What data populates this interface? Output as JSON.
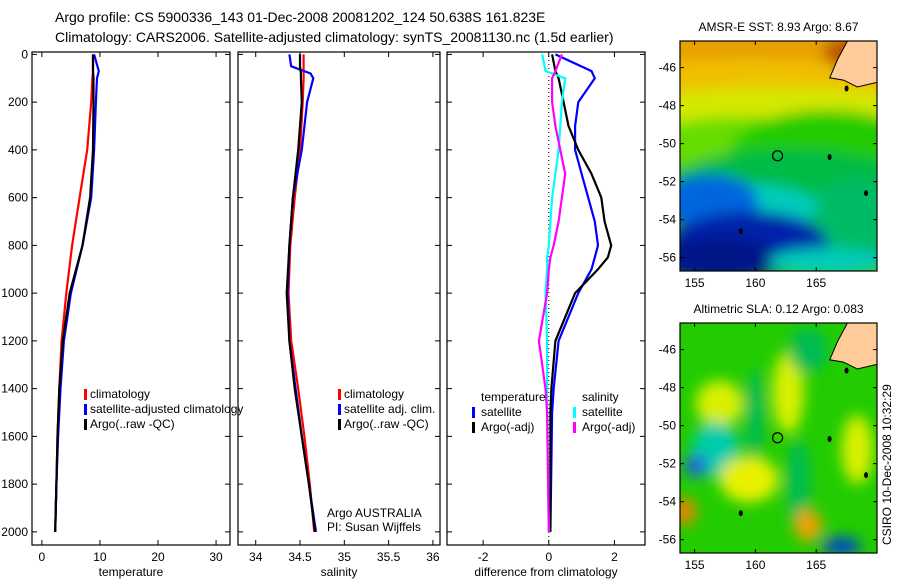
{
  "title": {
    "line1": "Argo profile: CS 5900336_143 01-Dec-2008 20081202_124 50.638S 161.823E",
    "line2": "Climatology: CARS2006. Satellite-adjusted climatology: synTS_20081130.nc (1.5d earlier)"
  },
  "credit": {
    "org": "Argo AUSTRALIA",
    "pi": "PI: Susan Wijffels",
    "stamp": "CSIRO 10-Dec-2008 10:32:29"
  },
  "colors": {
    "red": "#ff0000",
    "blue": "#0000ff",
    "black": "#000000",
    "cyan": "#00ffff",
    "magenta": "#ff00ff"
  },
  "chart_data": [
    {
      "type": "line",
      "name": "temperature",
      "xlabel": "temperature",
      "xlim": [
        -1.7,
        32.4
      ],
      "xticks": [
        0,
        10,
        20,
        30
      ],
      "ylim": [
        2055,
        -10
      ],
      "yticks": [
        0,
        200,
        400,
        600,
        800,
        1000,
        1200,
        1400,
        1600,
        1800,
        2000
      ],
      "legend": [
        "climatology",
        "satellite-adjusted climatology",
        "Argo(..raw -QC)"
      ],
      "depth": [
        0,
        70,
        100,
        200,
        400,
        600,
        800,
        1000,
        1200,
        1400,
        1600,
        1800,
        2000
      ],
      "series": [
        {
          "name": "climatology",
          "color": "red",
          "values": [
            8.8,
            8.8,
            8.7,
            8.5,
            7.8,
            6.5,
            5.2,
            4.2,
            3.4,
            3.0,
            2.7,
            2.5,
            2.3
          ]
        },
        {
          "name": "satellite-adjusted climatology",
          "color": "blue",
          "values": [
            9.0,
            9.8,
            9.5,
            9.3,
            9.0,
            8.5,
            7.0,
            5.0,
            3.8,
            3.2,
            2.8,
            2.5,
            2.3
          ]
        },
        {
          "name": "Argo(..raw -QC)",
          "color": "black",
          "values": [
            8.8,
            8.8,
            8.9,
            8.9,
            8.8,
            8.3,
            7.0,
            4.8,
            3.6,
            3.0,
            2.7,
            2.5,
            2.3
          ]
        }
      ]
    },
    {
      "type": "line",
      "name": "salinity",
      "xlabel": "salinity",
      "xlim": [
        33.8,
        36.08
      ],
      "xticks": [
        34,
        34.5,
        35,
        35.5,
        36
      ],
      "ylim": [
        2055,
        -10
      ],
      "legend": [
        "climatology",
        "satellite adj. clim.",
        "Argo(..raw -QC)"
      ],
      "depth": [
        0,
        50,
        80,
        100,
        200,
        400,
        600,
        800,
        1000,
        1200,
        1400,
        1600,
        1800,
        2000
      ],
      "series": [
        {
          "name": "climatology",
          "color": "red",
          "values": [
            34.54,
            34.54,
            34.54,
            34.54,
            34.53,
            34.5,
            34.44,
            34.39,
            34.37,
            34.4,
            34.48,
            34.55,
            34.61,
            34.66
          ]
        },
        {
          "name": "satellite adj. clim.",
          "color": "blue",
          "values": [
            34.38,
            34.4,
            34.62,
            34.65,
            34.58,
            34.52,
            34.42,
            34.38,
            34.36,
            34.38,
            34.45,
            34.52,
            34.6,
            34.68
          ]
        },
        {
          "name": "Argo(..raw -QC)",
          "color": "black",
          "values": [
            34.5,
            34.5,
            34.51,
            34.51,
            34.52,
            34.48,
            34.42,
            34.38,
            34.35,
            34.38,
            34.44,
            34.52,
            34.6,
            34.67
          ]
        }
      ]
    },
    {
      "type": "line",
      "name": "difference",
      "xlabel": "difference from climatology",
      "xlim": [
        -3.1,
        2.93
      ],
      "xticks": [
        -2,
        0,
        2
      ],
      "ylim": [
        2055,
        -10
      ],
      "legend_titles": [
        "temperature",
        "salinity"
      ],
      "legend": [
        "satellite",
        "Argo(-adj)",
        "satellite",
        "Argo(-adj)"
      ],
      "depth": [
        0,
        70,
        100,
        200,
        300,
        400,
        500,
        600,
        700,
        800,
        850,
        900,
        1000,
        1200,
        1400,
        1500,
        2000
      ],
      "series": [
        {
          "name": "temperature satellite",
          "color": "blue",
          "values": [
            0.2,
            1.3,
            1.4,
            0.9,
            0.8,
            0.8,
            1.0,
            1.2,
            1.4,
            1.5,
            1.4,
            1.3,
            0.9,
            0.3,
            0.15,
            0.1,
            0.05
          ]
        },
        {
          "name": "temperature Argo(-adj)",
          "color": "black",
          "values": [
            0.1,
            0.2,
            0.3,
            0.45,
            0.6,
            0.9,
            1.3,
            1.6,
            1.7,
            1.9,
            1.8,
            1.5,
            0.8,
            0.2,
            0.08,
            0.05,
            0.05
          ]
        },
        {
          "name": "salinity satellite",
          "color": "cyan",
          "values": [
            -0.2,
            -0.1,
            0.5,
            0.4,
            0.35,
            0.3,
            0.2,
            0.1,
            0.05,
            0.0,
            -0.05,
            -0.05,
            -0.1,
            -0.05,
            -0.05,
            -0.05,
            0.0
          ]
        },
        {
          "name": "salinity Argo(-adj)",
          "color": "magenta",
          "values": [
            0.4,
            0.2,
            0.1,
            0.1,
            0.2,
            0.35,
            0.5,
            0.4,
            0.3,
            0.15,
            0.05,
            0.0,
            -0.05,
            -0.3,
            -0.1,
            -0.05,
            0.0
          ]
        }
      ]
    },
    {
      "type": "heatmap",
      "name": "sst-map",
      "title": "AMSR-E SST: 8.93 Argo: 8.67",
      "xlim": [
        153.8,
        170
      ],
      "ylim": [
        -56.7,
        -44.6
      ],
      "xticks": [
        155,
        160,
        165
      ],
      "yticks": [
        -46,
        -48,
        -50,
        -52,
        -54,
        -56
      ],
      "argo_position": {
        "lon": 161.823,
        "lat": -50.638
      }
    },
    {
      "type": "heatmap",
      "name": "sla-map",
      "title": "Altimetric SLA: 0.12 Argo: 0.083",
      "xlim": [
        153.8,
        170
      ],
      "ylim": [
        -56.7,
        -44.6
      ],
      "xticks": [
        155,
        160,
        165
      ],
      "yticks": [
        -46,
        -48,
        -50,
        -52,
        -54,
        -56
      ],
      "argo_position": {
        "lon": 161.823,
        "lat": -50.638
      }
    }
  ]
}
